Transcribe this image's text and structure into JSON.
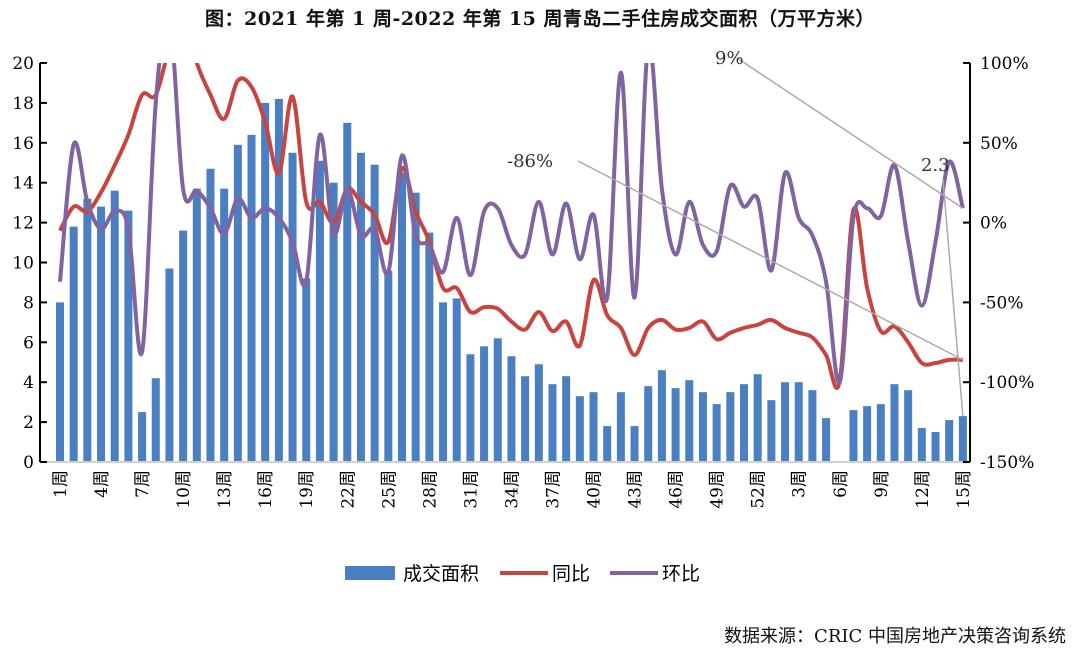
{
  "chart_data": {
    "type": "bar+line",
    "title": "图：2021 年第 1 周-2022 年第 15 周青岛二手住房成交面积（万平方米）",
    "source": "数据来源：CRIC 中国房地产决策咨询系统",
    "categories": [
      "1周",
      "2周",
      "3周",
      "4周",
      "5周",
      "6周",
      "7周",
      "8周",
      "9周",
      "10周",
      "11周",
      "12周",
      "13周",
      "14周",
      "15周",
      "16周",
      "17周",
      "18周",
      "19周",
      "20周",
      "21周",
      "22周",
      "23周",
      "24周",
      "25周",
      "26周",
      "27周",
      "28周",
      "29周",
      "30周",
      "31周",
      "32周",
      "33周",
      "34周",
      "35周",
      "36周",
      "37周",
      "38周",
      "39周",
      "40周",
      "41周",
      "42周",
      "43周",
      "44周",
      "45周",
      "46周",
      "47周",
      "48周",
      "49周",
      "50周",
      "51周",
      "52周",
      "1周",
      "2周",
      "3周",
      "4周",
      "5周",
      "6周",
      "7周",
      "8周",
      "9周",
      "10周",
      "11周",
      "12周",
      "13周",
      "14周",
      "15周"
    ],
    "tick_labels": [
      "1周",
      "4周",
      "7周",
      "10周",
      "13周",
      "16周",
      "19周",
      "22周",
      "25周",
      "28周",
      "31周",
      "34周",
      "37周",
      "40周",
      "43周",
      "46周",
      "49周",
      "52周",
      "3周",
      "6周",
      "9周",
      "12周",
      "15周"
    ],
    "tick_every": 3,
    "left_axis": {
      "ylim": [
        0,
        20
      ],
      "ticks": [
        0,
        2,
        4,
        6,
        8,
        10,
        12,
        14,
        16,
        18,
        20
      ]
    },
    "right_axis": {
      "ylim": [
        -150,
        100
      ],
      "ticks": [
        "-150%",
        "-100%",
        "-50%",
        "0%",
        "50%",
        "100%"
      ],
      "tick_values": [
        -150,
        -100,
        -50,
        0,
        50,
        100
      ]
    },
    "series": [
      {
        "name": "成交面积",
        "type": "bar",
        "axis": "left",
        "color": "#4a7fc1",
        "values": [
          8.0,
          11.8,
          13.2,
          12.8,
          13.6,
          12.6,
          2.5,
          4.2,
          9.7,
          11.6,
          13.7,
          14.7,
          13.7,
          15.9,
          16.4,
          18.0,
          18.2,
          15.5,
          9.2,
          15.1,
          14.0,
          17.0,
          15.5,
          14.9,
          9.6,
          14.5,
          13.5,
          11.5,
          8.0,
          8.2,
          5.4,
          5.8,
          6.2,
          5.3,
          4.3,
          4.9,
          3.9,
          4.3,
          3.3,
          3.5,
          1.8,
          3.5,
          1.8,
          3.8,
          4.6,
          3.7,
          4.1,
          3.5,
          2.9,
          3.5,
          3.9,
          4.4,
          3.1,
          4.0,
          4.0,
          3.6,
          2.2,
          0,
          2.6,
          2.8,
          2.9,
          3.9,
          3.6,
          1.7,
          1.5,
          2.1,
          2.3
        ]
      },
      {
        "name": "同比",
        "type": "line",
        "axis": "right",
        "color": "#c8453f",
        "values": [
          -5,
          10,
          7,
          19,
          36,
          55,
          80,
          80,
          110,
          130,
          100,
          80,
          65,
          89,
          85,
          63,
          31,
          79,
          13,
          13,
          0,
          21,
          13,
          5,
          -12,
          34,
          7,
          -12,
          -41,
          -41,
          -56,
          -53,
          -54,
          -62,
          -67,
          -56,
          -68,
          -62,
          -77,
          -36,
          -58,
          -66,
          -83,
          -66,
          -61,
          -67,
          -66,
          -62,
          -73,
          -69,
          -66,
          -64,
          -61,
          -66,
          -69,
          -72,
          -83,
          -99,
          8,
          -41,
          -68,
          -65,
          -75,
          -88,
          -88,
          -86,
          -86
        ]
      },
      {
        "name": "环比",
        "type": "line",
        "axis": "right",
        "color": "#8064a2",
        "values": [
          -37,
          49,
          13,
          -4,
          7,
          -4,
          -81,
          75,
          129,
          21,
          20,
          9,
          -7,
          15,
          3,
          9,
          3,
          -12,
          -37,
          55,
          -7,
          21,
          -8,
          -4,
          -31,
          42,
          -8,
          -14,
          -31,
          3,
          -33,
          7,
          9,
          -14,
          -20,
          13,
          -20,
          12,
          -23,
          5,
          -47,
          94,
          -47,
          111,
          21,
          -20,
          13,
          -14,
          -18,
          23,
          10,
          15,
          -30,
          31,
          3,
          -8,
          -37,
          -100,
          3,
          9,
          4,
          36,
          -12,
          -52,
          -12,
          38,
          9
        ]
      }
    ],
    "annotations": [
      {
        "text": "9%",
        "series": "环比",
        "index": 66
      },
      {
        "text": "-86%",
        "series": "同比",
        "index": 66
      },
      {
        "text": "2.3",
        "series": "成交面积",
        "index": 66
      }
    ],
    "legend": {
      "placement": "bottom",
      "items": [
        "成交面积",
        "同比",
        "环比"
      ]
    }
  }
}
